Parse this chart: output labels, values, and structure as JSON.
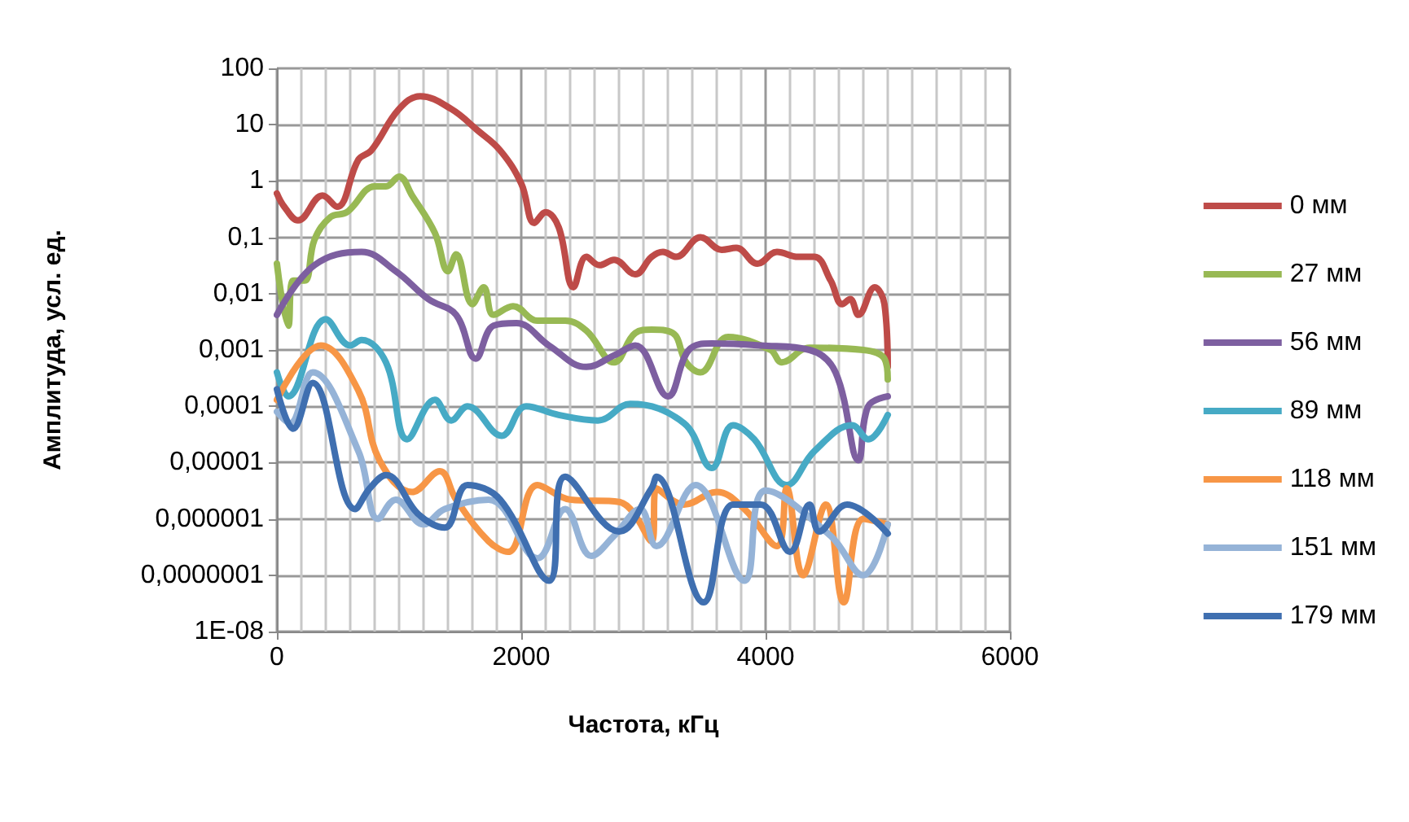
{
  "chart_data": {
    "type": "line",
    "xlabel": "Частота, кГц",
    "ylabel": "Амплитуда, усл. ед.",
    "log": "y",
    "grid": true,
    "legend": "right",
    "marker": "none",
    "line_style": "solid",
    "xlim": [
      0,
      6000
    ],
    "xticks": [
      0,
      2000,
      4000,
      6000
    ],
    "ylim": [
      1e-08,
      100
    ],
    "yticks": [
      100,
      10,
      1,
      {
        "value": 0.1,
        "label": "0,1"
      },
      {
        "value": 0.01,
        "label": "0,01"
      },
      {
        "value": 0.001,
        "label": "0,001"
      },
      {
        "value": 0.0001,
        "label": "0,0001"
      },
      {
        "value": 1e-05,
        "label": "0,00001"
      },
      {
        "value": 1e-06,
        "label": "0,000001"
      },
      {
        "value": 1e-07,
        "label": "0,0000001"
      },
      {
        "value": 1e-08,
        "label": "1E-08"
      }
    ],
    "series": [
      {
        "name": "0 мм",
        "color": "#be4b48",
        "x": [
          0,
          60,
          173,
          373,
          493,
          667,
          773,
          1000,
          1173,
          1427,
          1640,
          1827,
          2000,
          2107,
          2200,
          2307,
          2427,
          2533,
          2640,
          2760,
          2933,
          3067,
          3160,
          3267,
          3467,
          3640,
          3760,
          3933,
          4093,
          4267,
          4400,
          4533,
          4627,
          4693,
          4760,
          4893,
          4973,
          5000
        ],
        "values": [
          0.6,
          0.35,
          0.2,
          0.55,
          0.35,
          2.4,
          3.5,
          19,
          32,
          19,
          8,
          3.5,
          0.9,
          0.18,
          0.28,
          0.15,
          0.013,
          0.045,
          0.032,
          0.04,
          0.022,
          0.045,
          0.055,
          0.045,
          0.1,
          0.06,
          0.065,
          0.034,
          0.055,
          0.045,
          0.045,
          0.017,
          0.0065,
          0.008,
          0.0042,
          0.013,
          0.0065,
          0.0005
        ]
      },
      {
        "name": "27 мм",
        "color": "#98b954",
        "x": [
          0,
          93,
          133,
          227,
          307,
          440,
          573,
          800,
          893,
          1000,
          1107,
          1293,
          1400,
          1467,
          1600,
          1693,
          1773,
          1933,
          2133,
          2360,
          2533,
          2760,
          2933,
          3067,
          3240,
          3350,
          3467,
          3693,
          4040,
          4133,
          4360,
          4800,
          4973,
          5000
        ],
        "values": [
          0.034,
          0.0027,
          0.017,
          0.017,
          0.09,
          0.23,
          0.28,
          0.8,
          0.8,
          1.2,
          0.55,
          0.12,
          0.025,
          0.05,
          0.0065,
          0.013,
          0.0042,
          0.006,
          0.0033,
          0.0033,
          0.0022,
          0.0006,
          0.002,
          0.0023,
          0.002,
          0.0006,
          0.0004,
          0.0017,
          0.001,
          0.0006,
          0.0011,
          0.001,
          0.0007,
          0.0003
        ]
      },
      {
        "name": "56 мм",
        "color": "#7d5fa0",
        "x": [
          0,
          307,
          693,
          973,
          1240,
          1467,
          1627,
          1773,
          1960,
          2227,
          2533,
          2760,
          2933,
          3200,
          3373,
          3560,
          3960,
          4360,
          4573,
          4760,
          4840,
          5000
        ],
        "values": [
          0.0042,
          0.032,
          0.055,
          0.025,
          0.008,
          0.0042,
          0.0007,
          0.0027,
          0.003,
          0.0012,
          0.0005,
          0.0008,
          0.0012,
          0.00015,
          0.001,
          0.0013,
          0.0012,
          0.001,
          0.0004,
          1.1e-05,
          0.0001,
          0.00015
        ]
      },
      {
        "name": "89 мм",
        "color": "#46aac5",
        "x": [
          0,
          93,
          400,
          600,
          693,
          893,
          1067,
          1293,
          1427,
          1560,
          1840,
          2040,
          2307,
          2627,
          2893,
          3333,
          3560,
          3733,
          3907,
          4173,
          4400,
          4707,
          4840,
          5000
        ],
        "values": [
          0.0004,
          0.00015,
          0.0035,
          0.0012,
          0.0015,
          0.0006,
          2.6e-05,
          0.00013,
          5.6e-05,
          0.0001,
          3e-05,
          0.0001,
          7e-05,
          5.6e-05,
          0.00011,
          5e-05,
          8e-06,
          4.6e-05,
          2.6e-05,
          4e-06,
          1.6e-05,
          4.6e-05,
          2.6e-05,
          7e-05
        ]
      },
      {
        "name": "118 мм",
        "color": "#f79646",
        "x": [
          0,
          360,
          667,
          840,
          1107,
          1333,
          1467,
          1733,
          1893,
          2133,
          2400,
          2800,
          3067,
          3107,
          3333,
          3600,
          3827,
          4093,
          4173,
          4307,
          4493,
          4640,
          4800,
          5000
        ],
        "values": [
          0.00013,
          0.0012,
          0.00019,
          1.1e-05,
          3e-06,
          7e-06,
          2.2e-06,
          4e-07,
          2.6e-07,
          4e-06,
          2.2e-06,
          2e-06,
          4e-07,
          3.5e-06,
          1.8e-06,
          3e-06,
          1.5e-06,
          3.3e-07,
          3.5e-06,
          1e-07,
          1.8e-06,
          3.3e-08,
          1e-06,
          8e-07
        ]
      },
      {
        "name": "151 мм",
        "color": "#95b3d7",
        "x": [
          0,
          107,
          293,
          667,
          827,
          973,
          1200,
          1373,
          1733,
          2133,
          2360,
          2573,
          2760,
          2973,
          3107,
          3427,
          3827,
          4000,
          4533,
          4800,
          5000
        ],
        "values": [
          8e-05,
          5e-05,
          0.0004,
          1.6e-05,
          1e-06,
          2.2e-06,
          8e-07,
          1.5e-06,
          2.2e-06,
          2e-07,
          1.5e-06,
          2.2e-07,
          5e-07,
          1.5e-06,
          3.3e-07,
          4e-06,
          8e-08,
          3.2e-06,
          5e-07,
          1e-07,
          8e-07
        ]
      },
      {
        "name": "179 мм",
        "color": "#3f6fb0",
        "x": [
          0,
          133,
          293,
          640,
          760,
          893,
          1160,
          1373,
          1560,
          1827,
          2227,
          2360,
          2800,
          3067,
          3107,
          3493,
          3733,
          3960,
          4200,
          4360,
          4440,
          4667,
          5000
        ],
        "values": [
          0.0002,
          4e-05,
          0.00026,
          1.5e-06,
          3.5e-06,
          6e-06,
          1.2e-06,
          7e-07,
          4e-06,
          2.2e-06,
          8e-08,
          5.6e-06,
          6e-07,
          3.5e-06,
          5.6e-06,
          3.3e-08,
          1.8e-06,
          1.8e-06,
          2.6e-07,
          1.8e-06,
          6e-07,
          1.8e-06,
          5.5e-07
        ]
      }
    ]
  }
}
